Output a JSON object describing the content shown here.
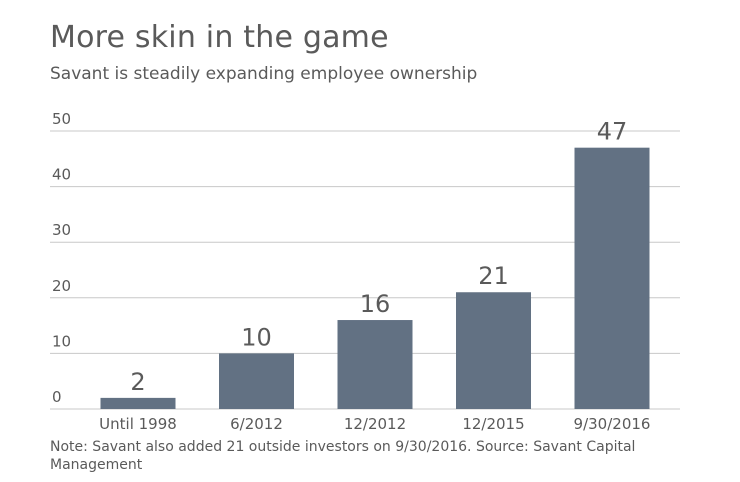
{
  "title": "More skin in the game",
  "subtitle": "Savant is steadily expanding employee ownership",
  "note": "Note: Savant also added 21 outside investors on 9/30/2016. Source: Savant Capital Management",
  "colors": {
    "bar": "#627183",
    "grid": "#c8c8c8",
    "text": "#5a5a5a"
  },
  "chart_data": {
    "type": "bar",
    "title": "More skin in the game",
    "subtitle": "Savant is steadily expanding employee ownership",
    "categories": [
      "Until 1998",
      "6/2012",
      "12/2012",
      "12/2015",
      "9/30/2016"
    ],
    "values": [
      2,
      10,
      16,
      21,
      47
    ],
    "xlabel": "",
    "ylabel": "",
    "ylim": [
      0,
      50
    ],
    "yticks": [
      0,
      10,
      20,
      30,
      40,
      50
    ],
    "grid": true,
    "data_labels": true
  }
}
